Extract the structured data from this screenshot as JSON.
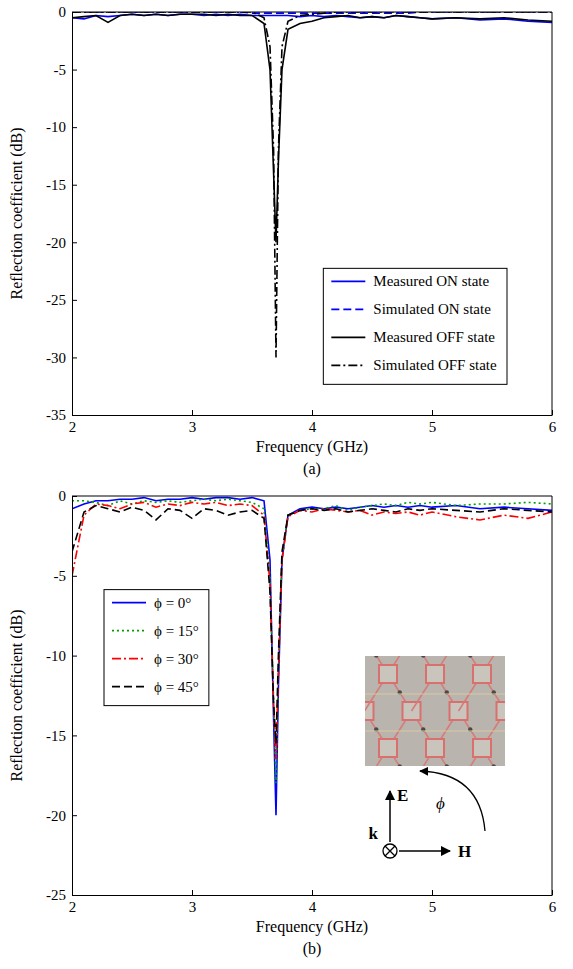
{
  "chart_data": [
    {
      "type": "line",
      "title": "(a)",
      "x_label": "Frequency (GHz)",
      "y_label": "Reflection coefficient (dB)",
      "x": [
        2,
        2.1,
        2.2,
        2.3,
        2.4,
        2.5,
        2.6,
        2.7,
        2.8,
        2.9,
        3.0,
        3.1,
        3.2,
        3.3,
        3.4,
        3.5,
        3.6,
        3.65,
        3.68,
        3.7,
        3.72,
        3.75,
        3.8,
        3.9,
        4.0,
        4.1,
        4.2,
        4.3,
        4.4,
        4.5,
        4.6,
        4.7,
        4.8,
        4.9,
        5.0,
        5.2,
        5.4,
        5.6,
        5.8,
        6.0
      ],
      "xlim": [
        2,
        6
      ],
      "xticks": [
        2,
        3,
        4,
        5,
        6
      ],
      "ylim": [
        -35,
        0
      ],
      "yticks": [
        -35,
        -30,
        -25,
        -20,
        -15,
        -10,
        -5,
        0
      ],
      "legend": "right",
      "series": [
        {
          "name": "Measured ON state",
          "color": "#0000ff",
          "line_style": "solid",
          "values": [
            -0.5,
            -0.6,
            -0.3,
            -0.4,
            -0.3,
            -0.2,
            -0.3,
            -0.2,
            -0.3,
            -0.2,
            -0.2,
            -0.3,
            -0.2,
            -0.3,
            -0.2,
            -0.3,
            -0.3,
            -0.3,
            -0.3,
            -0.3,
            -0.3,
            -0.3,
            -0.3,
            -0.4,
            -0.3,
            -0.4,
            -0.3,
            -0.4,
            -0.5,
            -0.4,
            -0.5,
            -0.3,
            -0.4,
            -0.5,
            -0.6,
            -0.5,
            -0.7,
            -0.6,
            -0.8,
            -0.9
          ]
        },
        {
          "name": "Simulated ON state",
          "color": "#0000ff",
          "line_style": "dashed",
          "values": [
            0,
            0,
            0,
            0,
            0,
            0,
            0,
            0,
            0,
            0,
            0,
            0,
            0,
            0,
            0,
            -0.1,
            -0.1,
            -0.1,
            -0.1,
            -0.1,
            -0.1,
            -0.1,
            -0.1,
            -0.1,
            -0.1,
            -0.1,
            -0.1,
            -0.1,
            -0.1,
            -0.1,
            -0.1,
            -0.1,
            -0.1,
            0,
            0,
            0,
            0,
            0,
            0,
            0
          ]
        },
        {
          "name": "Measured OFF state",
          "color": "#000000",
          "line_style": "solid",
          "values": [
            -0.5,
            -0.4,
            -0.3,
            -0.9,
            -0.3,
            -0.2,
            -0.3,
            -0.2,
            -0.3,
            -0.2,
            -0.2,
            -0.2,
            -0.3,
            -0.2,
            -0.3,
            -0.3,
            -1.0,
            -5,
            -14,
            -20,
            -13,
            -5,
            -1.5,
            -1.0,
            -0.8,
            -0.5,
            -0.4,
            -0.3,
            -0.5,
            -0.4,
            -0.5,
            -0.3,
            -0.4,
            -0.5,
            -0.6,
            -0.5,
            -0.6,
            -0.5,
            -0.7,
            -0.8
          ]
        },
        {
          "name": "Simulated OFF state",
          "color": "#000000",
          "line_style": "dashdot",
          "values": [
            0,
            0,
            0,
            0,
            0,
            0,
            0,
            0,
            0,
            0,
            0,
            0,
            0,
            0,
            0,
            0,
            -0.5,
            -3,
            -12,
            -30,
            -12,
            -3,
            -0.8,
            -0.3,
            -0.2,
            -0.1,
            0,
            0,
            0,
            0,
            0,
            0,
            0,
            0,
            0,
            0,
            0,
            0,
            0,
            0
          ]
        }
      ]
    },
    {
      "type": "line",
      "title": "(b)",
      "x_label": "Frequency (GHz)",
      "y_label": "Reflection coefficient (dB)",
      "x": [
        2,
        2.1,
        2.2,
        2.3,
        2.4,
        2.5,
        2.6,
        2.7,
        2.8,
        2.9,
        3.0,
        3.1,
        3.2,
        3.3,
        3.4,
        3.5,
        3.6,
        3.65,
        3.68,
        3.7,
        3.72,
        3.75,
        3.8,
        3.9,
        4.0,
        4.1,
        4.2,
        4.3,
        4.4,
        4.5,
        4.6,
        4.7,
        4.8,
        4.9,
        5.0,
        5.2,
        5.4,
        5.6,
        5.8,
        6.0
      ],
      "xlim": [
        2,
        6
      ],
      "xticks": [
        2,
        3,
        4,
        5,
        6
      ],
      "ylim": [
        -25,
        0
      ],
      "yticks": [
        -25,
        -20,
        -15,
        -10,
        -5,
        0
      ],
      "legend": "left",
      "annotations": [
        "E",
        "H",
        "k",
        "ϕ"
      ],
      "series": [
        {
          "name": "ϕ = 0°",
          "color": "#0000ff",
          "line_style": "solid",
          "values": [
            -0.8,
            -0.5,
            -0.3,
            -0.3,
            -0.2,
            -0.2,
            -0.1,
            -0.3,
            -0.2,
            -0.2,
            -0.1,
            -0.2,
            -0.1,
            -0.1,
            -0.2,
            -0.1,
            -0.3,
            -4,
            -14,
            -20,
            -12,
            -4,
            -1.2,
            -0.8,
            -0.7,
            -0.8,
            -0.7,
            -0.8,
            -0.7,
            -0.6,
            -0.7,
            -0.6,
            -0.7,
            -0.6,
            -0.7,
            -0.6,
            -0.8,
            -0.7,
            -0.8,
            -0.9
          ]
        },
        {
          "name": "ϕ = 15°",
          "color": "#00a000",
          "line_style": "dotted",
          "values": [
            -0.3,
            -0.3,
            -0.4,
            -0.6,
            -0.3,
            -0.5,
            -0.3,
            -0.4,
            -0.3,
            -0.4,
            -0.3,
            -0.2,
            -0.3,
            -0.2,
            -0.3,
            -0.4,
            -0.8,
            -5,
            -13,
            -18,
            -11,
            -4,
            -1.2,
            -0.9,
            -0.8,
            -0.8,
            -0.6,
            -0.9,
            -0.7,
            -0.6,
            -0.5,
            -0.6,
            -0.4,
            -0.5,
            -0.4,
            -0.6,
            -0.5,
            -0.5,
            -0.4,
            -0.5
          ]
        },
        {
          "name": "ϕ = 30°",
          "color": "#ff0000",
          "line_style": "dashdot",
          "values": [
            -5,
            -1.2,
            -0.5,
            -0.6,
            -0.8,
            -0.5,
            -0.4,
            -0.7,
            -0.5,
            -0.6,
            -0.4,
            -0.5,
            -0.4,
            -0.6,
            -0.5,
            -0.6,
            -1.2,
            -5.5,
            -13,
            -16.5,
            -11,
            -4,
            -1.3,
            -0.9,
            -1.0,
            -0.8,
            -0.9,
            -1.0,
            -0.9,
            -1.2,
            -1.0,
            -1.1,
            -1.0,
            -1.2,
            -1.0,
            -1.3,
            -1.5,
            -1.2,
            -1.4,
            -1.0
          ]
        },
        {
          "name": "ϕ = 45°",
          "color": "#000000",
          "line_style": "dashed",
          "values": [
            -3.5,
            -1.0,
            -0.6,
            -0.8,
            -1.0,
            -0.7,
            -0.9,
            -1.5,
            -0.8,
            -0.9,
            -1.4,
            -0.8,
            -0.9,
            -1.2,
            -1.0,
            -0.9,
            -1.4,
            -6,
            -13,
            -15.5,
            -10,
            -3.5,
            -1.2,
            -0.9,
            -0.8,
            -0.9,
            -0.8,
            -1.0,
            -0.9,
            -0.8,
            -0.9,
            -1.0,
            -0.8,
            -0.9,
            -0.8,
            -0.9,
            -1.0,
            -0.8,
            -0.9,
            -1.0
          ]
        }
      ]
    }
  ]
}
